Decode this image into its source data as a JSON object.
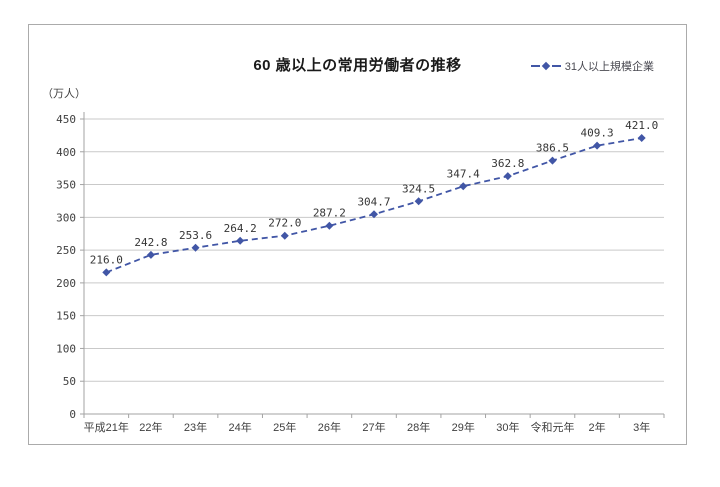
{
  "chart_data": {
    "type": "line",
    "title": "60 歳以上の常用労働者の推移",
    "ylabel": "（万人）",
    "legend": "31人以上規模企業",
    "legend_position": "top-right",
    "categories": [
      "平成21年",
      "22年",
      "23年",
      "24年",
      "25年",
      "26年",
      "27年",
      "28年",
      "29年",
      "30年",
      "令和元年",
      "2年",
      "3年"
    ],
    "values": [
      216.0,
      242.8,
      253.6,
      264.2,
      272.0,
      287.2,
      304.7,
      324.5,
      347.4,
      362.8,
      386.5,
      409.3,
      421.0
    ],
    "series": [
      {
        "name": "31人以上規模企業",
        "values": [
          216.0,
          242.8,
          253.6,
          264.2,
          272.0,
          287.2,
          304.7,
          324.5,
          347.4,
          362.8,
          386.5,
          409.3,
          421.0
        ]
      }
    ],
    "ylim": [
      0,
      450
    ],
    "ytick_step": 50,
    "grid": true,
    "line_style": "dashed",
    "marker": "diamond",
    "value_label_decimals": 1
  },
  "colors": {
    "series": "#4156a6",
    "grid": "#c9c9c9",
    "axis": "#a3a3a3",
    "tick_label": "#404040",
    "value_label": "#363636",
    "legend_text": "#4a4a52",
    "frame_border": "#ababab",
    "background": "#ffffff"
  }
}
